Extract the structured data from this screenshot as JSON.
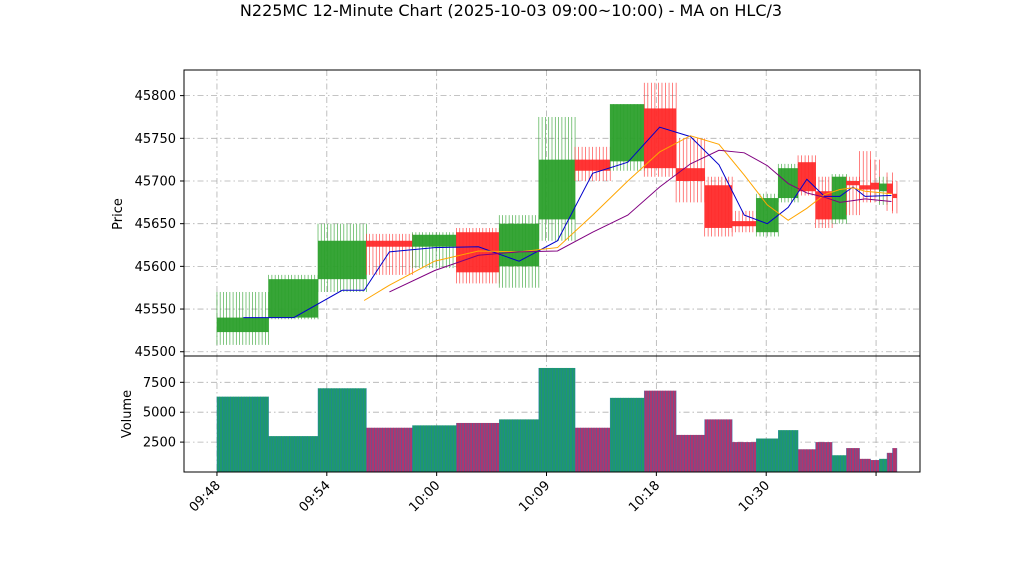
{
  "chart_data": {
    "type": "candlestick",
    "title": "N225MC 12-Minute Chart (2025-10-03 09:00~10:00) - MA on HLC/3",
    "price_panel": {
      "ylabel": "Price",
      "ylim": [
        45495,
        45830
      ],
      "yticks": [
        45500,
        45550,
        45600,
        45650,
        45700,
        45750,
        45800
      ],
      "ytick_labels": [
        "45500",
        "45550",
        "45600",
        "45650",
        "45700",
        "45750",
        "45800"
      ]
    },
    "volume_panel": {
      "ylabel": "Volume",
      "ylim": [
        0,
        9700
      ],
      "yticks": [
        2500,
        5000,
        7500
      ],
      "ytick_labels": [
        "2500",
        "5000",
        "7500"
      ]
    },
    "xlim": [
      -3,
      64
    ],
    "x_ticks": [
      {
        "x": 0,
        "label": "09:48"
      },
      {
        "x": 10,
        "label": "09:54"
      },
      {
        "x": 20,
        "label": "10:00"
      },
      {
        "x": 30,
        "label": "10:09"
      },
      {
        "x": 40,
        "label": "10:18"
      },
      {
        "x": 50,
        "label": "10:30"
      },
      {
        "x": 60,
        "label": ""
      }
    ],
    "colors": {
      "up": "#2ca02c",
      "down": "#ff2a2a",
      "volume_edge": "#1f77b4",
      "ma1": "#0000cc",
      "ma2": "#ffa500",
      "ma3": "#800080"
    },
    "candles": [
      {
        "x0": 0,
        "x1": 4.7,
        "open": 45523,
        "high": 45570,
        "low": 45508,
        "close": 45540,
        "volume": 6300
      },
      {
        "x0": 4.7,
        "x1": 9.2,
        "open": 45540,
        "high": 45590,
        "low": 45538,
        "close": 45585,
        "volume": 3000
      },
      {
        "x0": 9.2,
        "x1": 13.6,
        "open": 45585,
        "high": 45650,
        "low": 45570,
        "close": 45630,
        "volume": 7000
      },
      {
        "x0": 13.6,
        "x1": 17.8,
        "open": 45630,
        "high": 45638,
        "low": 45590,
        "close": 45623,
        "volume": 3700
      },
      {
        "x0": 17.8,
        "x1": 21.8,
        "open": 45623,
        "high": 45640,
        "low": 45598,
        "close": 45637,
        "volume": 3900
      },
      {
        "x0": 21.8,
        "x1": 25.7,
        "open": 45640,
        "high": 45645,
        "low": 45580,
        "close": 45593,
        "volume": 4100
      },
      {
        "x0": 25.7,
        "x1": 29.3,
        "open": 45600,
        "high": 45660,
        "low": 45575,
        "close": 45650,
        "volume": 4400
      },
      {
        "x0": 29.3,
        "x1": 32.6,
        "open": 45655,
        "high": 45775,
        "low": 45630,
        "close": 45725,
        "volume": 8700
      },
      {
        "x0": 32.6,
        "x1": 35.8,
        "open": 45725,
        "high": 45740,
        "low": 45700,
        "close": 45712,
        "volume": 3700
      },
      {
        "x0": 35.8,
        "x1": 38.9,
        "open": 45723,
        "high": 45790,
        "low": 45712,
        "close": 45790,
        "volume": 6200
      },
      {
        "x0": 38.9,
        "x1": 41.8,
        "open": 45785,
        "high": 45815,
        "low": 45705,
        "close": 45715,
        "volume": 6800
      },
      {
        "x0": 41.8,
        "x1": 44.4,
        "open": 45715,
        "high": 45750,
        "low": 45675,
        "close": 45700,
        "volume": 3100
      },
      {
        "x0": 44.4,
        "x1": 46.9,
        "open": 45695,
        "high": 45705,
        "low": 45635,
        "close": 45645,
        "volume": 4400
      },
      {
        "x0": 46.9,
        "x1": 49.1,
        "open": 45653,
        "high": 45665,
        "low": 45640,
        "close": 45647,
        "volume": 2500
      },
      {
        "x0": 49.1,
        "x1": 51.1,
        "open": 45640,
        "high": 45685,
        "low": 45635,
        "close": 45680,
        "volume": 2800
      },
      {
        "x0": 51.1,
        "x1": 52.9,
        "open": 45680,
        "high": 45720,
        "low": 45675,
        "close": 45715,
        "volume": 3500
      },
      {
        "x0": 52.9,
        "x1": 54.5,
        "open": 45722,
        "high": 45730,
        "low": 45683,
        "close": 45688,
        "volume": 1900
      },
      {
        "x0": 54.5,
        "x1": 56.0,
        "open": 45688,
        "high": 45705,
        "low": 45645,
        "close": 45655,
        "volume": 2500
      },
      {
        "x0": 56.0,
        "x1": 57.3,
        "open": 45655,
        "high": 45708,
        "low": 45650,
        "close": 45705,
        "volume": 1400
      },
      {
        "x0": 57.3,
        "x1": 58.5,
        "open": 45700,
        "high": 45705,
        "low": 45660,
        "close": 45695,
        "volume": 2000
      },
      {
        "x0": 58.5,
        "x1": 59.5,
        "open": 45695,
        "high": 45735,
        "low": 45675,
        "close": 45690,
        "volume": 1100
      },
      {
        "x0": 59.5,
        "x1": 60.3,
        "open": 45698,
        "high": 45725,
        "low": 45675,
        "close": 45690,
        "volume": 1000
      },
      {
        "x0": 60.3,
        "x1": 61.0,
        "open": 45688,
        "high": 45705,
        "low": 45672,
        "close": 45697,
        "volume": 1100
      },
      {
        "x0": 61.0,
        "x1": 61.5,
        "open": 45697,
        "high": 45710,
        "low": 45665,
        "close": 45685,
        "volume": 1600
      },
      {
        "x0": 61.5,
        "x1": 61.9,
        "open": 45685,
        "high": 45700,
        "low": 45662,
        "close": 45680,
        "volume": 2000
      }
    ],
    "ma_series": [
      {
        "color_key": "ma1",
        "points": [
          [
            2.4,
            45540
          ],
          [
            7,
            45540
          ],
          [
            11.4,
            45572
          ],
          [
            13.4,
            45572
          ],
          [
            15.7,
            45617
          ],
          [
            19.8,
            45622
          ],
          [
            23.8,
            45623
          ],
          [
            27.5,
            45606
          ],
          [
            31,
            45630
          ],
          [
            34.2,
            45709
          ],
          [
            37.4,
            45722
          ],
          [
            40.3,
            45763
          ],
          [
            43.1,
            45752
          ],
          [
            45.7,
            45719
          ],
          [
            48,
            45660
          ],
          [
            50.1,
            45650
          ],
          [
            52,
            45669
          ],
          [
            53.7,
            45702
          ],
          [
            55.3,
            45682
          ],
          [
            56.7,
            45682
          ],
          [
            57.9,
            45693
          ],
          [
            59,
            45682
          ],
          [
            61.4,
            45683
          ]
        ]
      },
      {
        "color_key": "ma2",
        "points": [
          [
            13.4,
            45560
          ],
          [
            15.7,
            45578
          ],
          [
            19.8,
            45606
          ],
          [
            23.8,
            45618
          ],
          [
            27.5,
            45617
          ],
          [
            31,
            45622
          ],
          [
            34.2,
            45660
          ],
          [
            37.4,
            45700
          ],
          [
            40.3,
            45734
          ],
          [
            43.1,
            45753
          ],
          [
            45.7,
            45743
          ],
          [
            48,
            45707
          ],
          [
            50.1,
            45672
          ],
          [
            52,
            45654
          ],
          [
            53.7,
            45668
          ],
          [
            55.3,
            45684
          ],
          [
            56.7,
            45690
          ],
          [
            57.9,
            45692
          ],
          [
            59,
            45688
          ],
          [
            61.4,
            45685
          ]
        ]
      },
      {
        "color_key": "ma3",
        "points": [
          [
            15.7,
            45570
          ],
          [
            19.8,
            45595
          ],
          [
            23.8,
            45613
          ],
          [
            27.5,
            45617
          ],
          [
            31,
            45618
          ],
          [
            34.2,
            45640
          ],
          [
            37.4,
            45660
          ],
          [
            40.3,
            45693
          ],
          [
            43.1,
            45720
          ],
          [
            45.7,
            45736
          ],
          [
            48,
            45733
          ],
          [
            50.1,
            45718
          ],
          [
            52,
            45697
          ],
          [
            53.7,
            45686
          ],
          [
            55.3,
            45681
          ],
          [
            56.7,
            45675
          ],
          [
            57.9,
            45677
          ],
          [
            59,
            45679
          ],
          [
            61.4,
            45676
          ]
        ]
      }
    ]
  }
}
